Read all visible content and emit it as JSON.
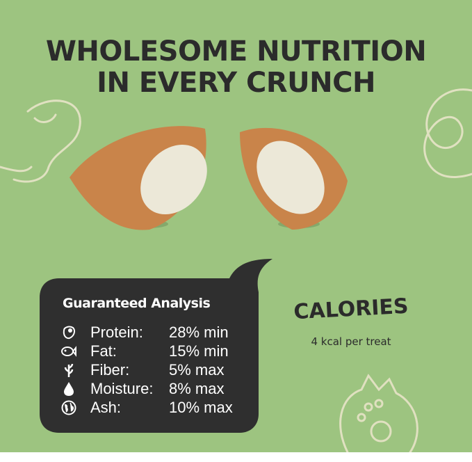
{
  "headline": {
    "line1": "WHOLESOME NUTRITION",
    "line2": "IN EVERY CRUNCH"
  },
  "colors": {
    "background": "#9dc480",
    "bubble": "#2f2f2f",
    "text_dark": "#2b2b2b",
    "doodle": "#e8e4c8",
    "treat_crust": "#c9844a",
    "treat_filling": "#ece8d8"
  },
  "analysis": {
    "title": "Guaranteed Analysis",
    "rows": [
      {
        "icon": "meat-icon",
        "label": "Protein:",
        "value": "28% min"
      },
      {
        "icon": "fish-icon",
        "label": "Fat:",
        "value": "15% min"
      },
      {
        "icon": "plant-icon",
        "label": "Fiber:",
        "value": "5% max"
      },
      {
        "icon": "water-drop-icon",
        "label": "Moisture:",
        "value": "8% max"
      },
      {
        "icon": "globe-icon",
        "label": "Ash:",
        "value": "10% max"
      }
    ]
  },
  "calories": {
    "title": "CALORIES",
    "value": "4 kcal per treat"
  }
}
